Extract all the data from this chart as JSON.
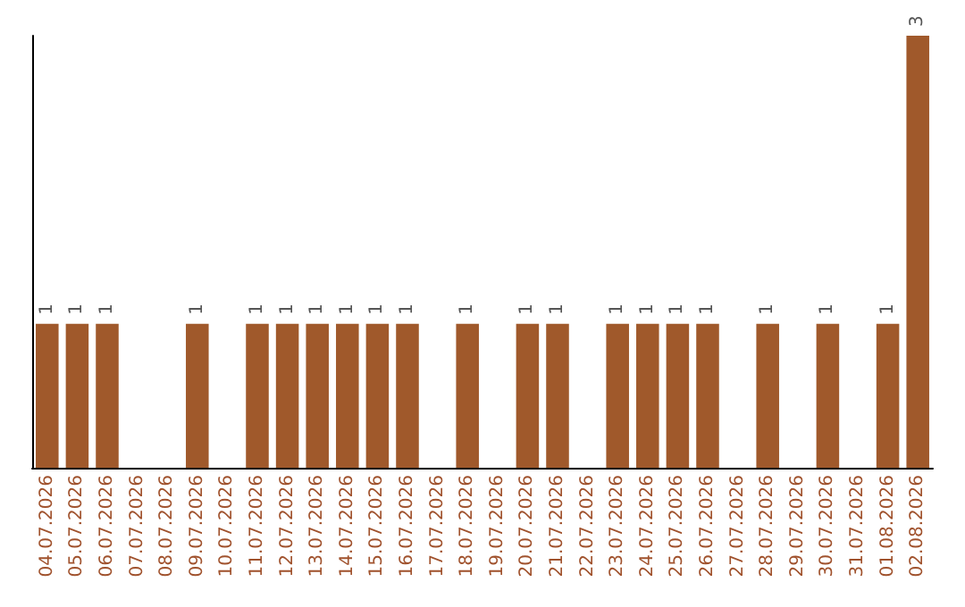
{
  "chart_data": {
    "type": "bar",
    "categories": [
      "04.07.2026",
      "05.07.2026",
      "06.07.2026",
      "07.07.2026",
      "08.07.2026",
      "09.07.2026",
      "10.07.2026",
      "11.07.2026",
      "12.07.2026",
      "13.07.2026",
      "14.07.2026",
      "15.07.2026",
      "16.07.2026",
      "17.07.2026",
      "18.07.2026",
      "19.07.2026",
      "20.07.2026",
      "21.07.2026",
      "22.07.2026",
      "23.07.2026",
      "24.07.2026",
      "25.07.2026",
      "26.07.2026",
      "27.07.2026",
      "28.07.2026",
      "29.07.2026",
      "30.07.2026",
      "31.07.2026",
      "01.08.2026",
      "02.08.2026"
    ],
    "values": [
      1,
      1,
      1,
      null,
      null,
      1,
      null,
      1,
      1,
      1,
      1,
      1,
      1,
      null,
      1,
      null,
      1,
      1,
      null,
      1,
      1,
      1,
      1,
      null,
      1,
      null,
      1,
      null,
      1,
      3
    ],
    "color": "#a0592b",
    "data_labels": true
  }
}
